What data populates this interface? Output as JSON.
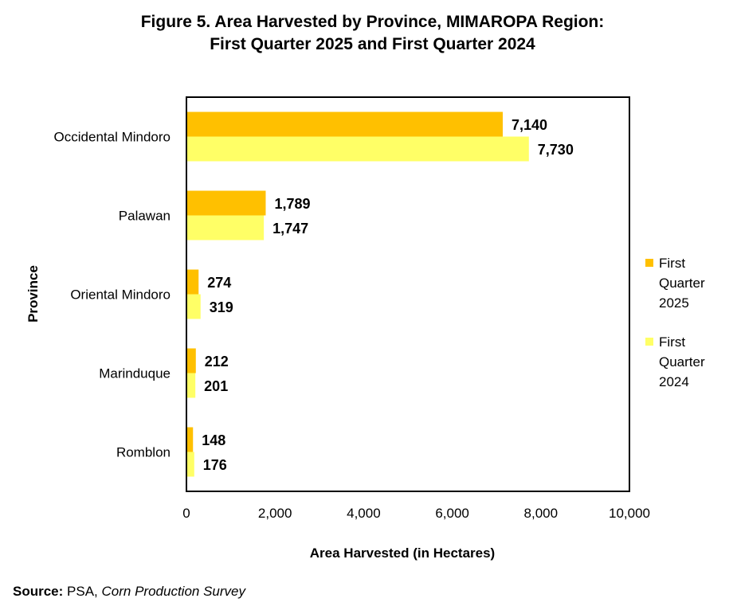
{
  "title": {
    "line1": "Figure 5. Area Harvested by Province, MIMAROPA Region:",
    "line2": "First Quarter 2025 and First Quarter 2024"
  },
  "source": {
    "label": "Source:",
    "agency": "PSA,",
    "survey": "Corn Production Survey"
  },
  "legend": {
    "placement": "right",
    "items": [
      {
        "label_line1": "First",
        "label_line2": "Quarter",
        "label_line3": "2025"
      },
      {
        "label_line1": "First",
        "label_line2": "Quarter",
        "label_line3": "2024"
      }
    ]
  },
  "colors": {
    "q1_2025": "#FFC000",
    "q1_2024": "#FFFF66",
    "frame": "#000000"
  },
  "chart_data": {
    "type": "bar",
    "orientation": "horizontal",
    "xlabel": "Area Harvested (in Hectares)",
    "ylabel": "Province",
    "xlim": [
      0,
      10000
    ],
    "xticks": [
      0,
      2000,
      4000,
      6000,
      8000,
      10000
    ],
    "xtick_labels": [
      "0",
      "2,000",
      "4,000",
      "6,000",
      "8,000",
      "10,000"
    ],
    "grid": false,
    "categories": [
      "Occidental Mindoro",
      "Palawan",
      "Oriental Mindoro",
      "Marinduque",
      "Romblon"
    ],
    "series": [
      {
        "name": "First Quarter 2025",
        "values": [
          7140,
          1789,
          274,
          212,
          148
        ],
        "labels": [
          "7,140",
          "1,789",
          "274",
          "212",
          "148"
        ]
      },
      {
        "name": "First Quarter 2024",
        "values": [
          7730,
          1747,
          319,
          201,
          176
        ],
        "labels": [
          "7,730",
          "1,747",
          "319",
          "201",
          "176"
        ]
      }
    ]
  }
}
